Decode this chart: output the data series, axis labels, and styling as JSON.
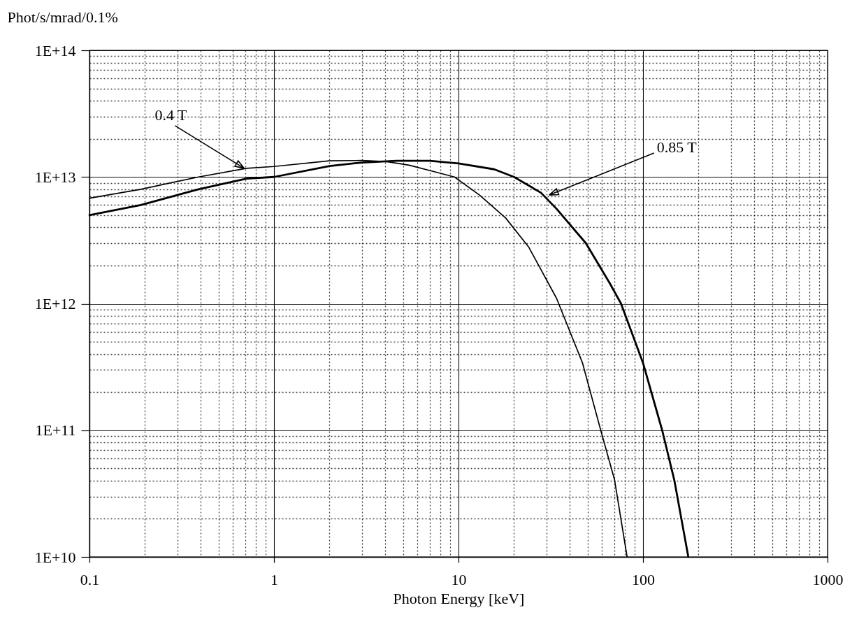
{
  "chart_data": {
    "type": "line",
    "xlabel": "Photon Energy [keV]",
    "ylabel": "Phot/s/mrad/0.1%",
    "log": "xy",
    "grid": true,
    "line_style": "solid",
    "xlim": [
      0.1,
      1000
    ],
    "ylim": [
      10000000000.0,
      100000000000000.0
    ],
    "xticks": [
      0.1,
      {
        "value": 0.2,
        "label": null
      },
      {
        "value": 0.3,
        "label": null
      },
      {
        "value": 0.4,
        "label": null
      },
      {
        "value": 0.5,
        "label": null
      },
      {
        "value": 0.6,
        "label": null
      },
      {
        "value": 0.7,
        "label": null
      },
      {
        "value": 0.8,
        "label": null
      },
      {
        "value": 0.9,
        "label": null
      },
      1,
      {
        "value": 2,
        "label": null
      },
      {
        "value": 3,
        "label": null
      },
      {
        "value": 4,
        "label": null
      },
      {
        "value": 5,
        "label": null
      },
      {
        "value": 6,
        "label": null
      },
      {
        "value": 7,
        "label": null
      },
      {
        "value": 8,
        "label": null
      },
      {
        "value": 9,
        "label": null
      },
      10,
      {
        "value": 20,
        "label": null
      },
      {
        "value": 30,
        "label": null
      },
      {
        "value": 40,
        "label": null
      },
      {
        "value": 50,
        "label": null
      },
      {
        "value": 60,
        "label": null
      },
      {
        "value": 70,
        "label": null
      },
      {
        "value": 80,
        "label": null
      },
      {
        "value": 90,
        "label": null
      },
      100,
      {
        "value": 200,
        "label": null
      },
      {
        "value": 300,
        "label": null
      },
      {
        "value": 400,
        "label": null
      },
      {
        "value": 500,
        "label": null
      },
      {
        "value": 600,
        "label": null
      },
      {
        "value": 700,
        "label": null
      },
      {
        "value": 800,
        "label": null
      },
      {
        "value": 900,
        "label": null
      },
      1000
    ],
    "yticks": [
      {
        "value": 10000000000.0,
        "label": "1E+10"
      },
      {
        "value": 20000000000.0,
        "label": null
      },
      {
        "value": 30000000000.0,
        "label": null
      },
      {
        "value": 40000000000.0,
        "label": null
      },
      {
        "value": 50000000000.0,
        "label": null
      },
      {
        "value": 60000000000.0,
        "label": null
      },
      {
        "value": 70000000000.0,
        "label": null
      },
      {
        "value": 80000000000.0,
        "label": null
      },
      {
        "value": 90000000000.0,
        "label": null
      },
      {
        "value": 100000000000.0,
        "label": "1E+11"
      },
      {
        "value": 200000000000.0,
        "label": null
      },
      {
        "value": 300000000000.0,
        "label": null
      },
      {
        "value": 400000000000.0,
        "label": null
      },
      {
        "value": 500000000000.0,
        "label": null
      },
      {
        "value": 600000000000.0,
        "label": null
      },
      {
        "value": 700000000000.0,
        "label": null
      },
      {
        "value": 800000000000.0,
        "label": null
      },
      {
        "value": 900000000000.0,
        "label": null
      },
      {
        "value": 1000000000000.0,
        "label": "1E+12"
      },
      {
        "value": 2000000000000.0,
        "label": null
      },
      {
        "value": 3000000000000.0,
        "label": null
      },
      {
        "value": 4000000000000.0,
        "label": null
      },
      {
        "value": 5000000000000.0,
        "label": null
      },
      {
        "value": 6000000000000.0,
        "label": null
      },
      {
        "value": 7000000000000.0,
        "label": null
      },
      {
        "value": 8000000000000.0,
        "label": null
      },
      {
        "value": 9000000000000.0,
        "label": null
      },
      {
        "value": 10000000000000.0,
        "label": "1E+13"
      },
      {
        "value": 20000000000000.0,
        "label": null
      },
      {
        "value": 30000000000000.0,
        "label": null
      },
      {
        "value": 40000000000000.0,
        "label": null
      },
      {
        "value": 50000000000000.0,
        "label": null
      },
      {
        "value": 60000000000000.0,
        "label": null
      },
      {
        "value": 70000000000000.0,
        "label": null
      },
      {
        "value": 80000000000000.0,
        "label": null
      },
      {
        "value": 90000000000000.0,
        "label": null
      },
      {
        "value": 100000000000000.0,
        "label": "1E+14"
      }
    ],
    "series": [
      {
        "color": "#000000",
        "x": [
          0.1,
          0.19,
          0.39,
          0.71,
          1,
          2,
          3,
          4.1,
          5.4,
          7.4,
          9.5,
          13,
          18,
          24,
          34,
          47,
          59,
          70,
          82
        ],
        "values": [
          6800000000000.0,
          8000000000000.0,
          10000000000000.0,
          11700000000000.0,
          12100000000000.0,
          13400000000000.0,
          13500000000000.0,
          13200000000000.0,
          12400000000000.0,
          11000000000000.0,
          10000000000000.0,
          7200000000000.0,
          4750000000000.0,
          2800000000000.0,
          1100000000000.0,
          340000000000.0,
          100000000000.0,
          41000000000.0,
          10000000000.0
        ]
      },
      {
        "color": "#000000",
        "x": [
          0.1,
          0.19,
          0.39,
          0.71,
          1,
          2,
          3,
          4.6,
          7,
          10,
          15.6,
          20,
          28,
          34,
          49,
          66,
          76,
          100,
          127,
          148,
          176
        ],
        "values": [
          5000000000000.0,
          6000000000000.0,
          8000000000000.0,
          9700000000000.0,
          10000000000000.0,
          12200000000000.0,
          13000000000000.0,
          13400000000000.0,
          13400000000000.0,
          12800000000000.0,
          11500000000000.0,
          10000000000000.0,
          7500000000000.0,
          5600000000000.0,
          3000000000000.0,
          1450000000000.0,
          1000000000000.0,
          340000000000.0,
          100000000000.0,
          40000000000.0,
          10000000000.0
        ]
      }
    ],
    "annotations": [
      {
        "text": "0.4 T",
        "x": 0.69,
        "y": 11700000000000.0
      },
      {
        "text": "0.85 T",
        "x": 31,
        "y": 7200000000000.0
      }
    ]
  }
}
